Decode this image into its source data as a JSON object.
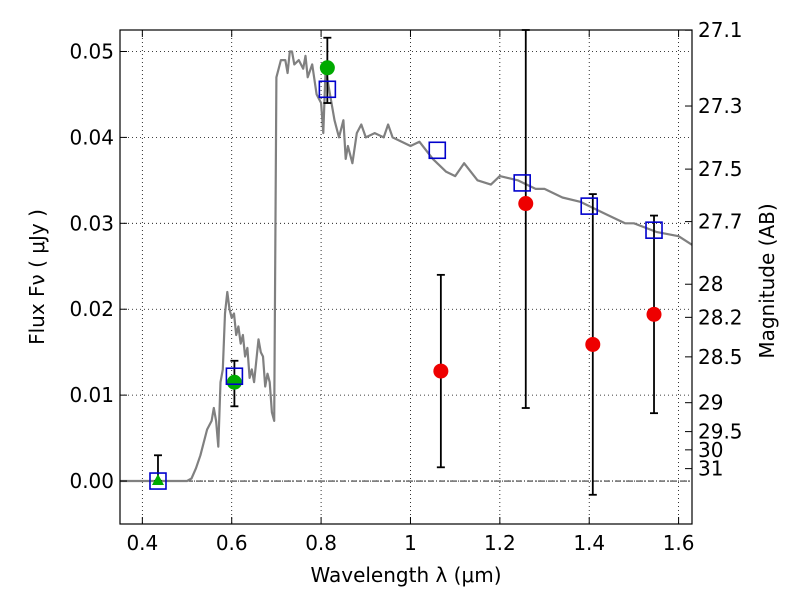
{
  "chart_data": {
    "type": "scatter",
    "title": "",
    "xlabel": "Wavelength  λ (μm)",
    "ylabel": "Flux  Fν  ( μJy )",
    "ylabel_right": "Magnitude (AB)",
    "xlim": [
      0.35,
      1.63
    ],
    "ylim": [
      -0.005,
      0.0525
    ],
    "grid": true,
    "x_ticks": [
      0.4,
      0.6,
      0.8,
      1.0,
      1.2,
      1.4,
      1.6
    ],
    "x_tick_labels": [
      "0.4",
      "0.6",
      "0.8",
      "1",
      "1.2",
      "1.4",
      "1.6"
    ],
    "y_ticks": [
      0.0,
      0.01,
      0.02,
      0.03,
      0.04,
      0.05
    ],
    "y_tick_labels": [
      "0.00",
      "0.01",
      "0.02",
      "0.03",
      "0.04",
      "0.05"
    ],
    "right_ticks": [
      {
        "label": "27.1",
        "mag": 27.1
      },
      {
        "label": "27.3",
        "mag": 27.3
      },
      {
        "label": "27.5",
        "mag": 27.5
      },
      {
        "label": "27.7",
        "mag": 27.7
      },
      {
        "label": "28",
        "mag": 28.0
      },
      {
        "label": "28.2",
        "mag": 28.2
      },
      {
        "label": "28.5",
        "mag": 28.5
      },
      {
        "label": "29",
        "mag": 29.0
      },
      {
        "label": "29.5",
        "mag": 29.5
      },
      {
        "label": "30",
        "mag": 30.0
      },
      {
        "label": "31",
        "mag": 31.0
      }
    ],
    "colors": {
      "sed_line": "#808080",
      "model_box": "#0000cc",
      "detection": "#00aa00",
      "nondetection": "#ee0000",
      "errorbar": "#000000"
    },
    "sed_model": {
      "x": [
        0.35,
        0.5,
        0.51,
        0.52,
        0.53,
        0.545,
        0.555,
        0.56,
        0.565,
        0.57,
        0.575,
        0.58,
        0.585,
        0.59,
        0.595,
        0.6,
        0.605,
        0.61,
        0.615,
        0.62,
        0.625,
        0.63,
        0.635,
        0.64,
        0.645,
        0.65,
        0.66,
        0.665,
        0.67,
        0.675,
        0.68,
        0.685,
        0.69,
        0.695,
        0.7,
        0.71,
        0.72,
        0.725,
        0.73,
        0.735,
        0.74,
        0.75,
        0.76,
        0.765,
        0.77,
        0.78,
        0.79,
        0.8,
        0.805,
        0.81,
        0.82,
        0.83,
        0.84,
        0.85,
        0.855,
        0.86,
        0.87,
        0.88,
        0.89,
        0.9,
        0.92,
        0.94,
        0.95,
        0.96,
        1.0,
        1.02,
        1.05,
        1.08,
        1.1,
        1.12,
        1.15,
        1.18,
        1.2,
        1.24,
        1.28,
        1.3,
        1.34,
        1.38,
        1.4,
        1.44,
        1.48,
        1.5,
        1.55,
        1.6,
        1.63
      ],
      "y": [
        0.0,
        0.0,
        0.0003,
        0.0015,
        0.003,
        0.006,
        0.007,
        0.0085,
        0.007,
        0.004,
        0.0115,
        0.013,
        0.0195,
        0.022,
        0.02,
        0.019,
        0.0195,
        0.017,
        0.018,
        0.016,
        0.017,
        0.0145,
        0.0155,
        0.012,
        0.013,
        0.0115,
        0.0165,
        0.015,
        0.0145,
        0.011,
        0.0125,
        0.0115,
        0.008,
        0.007,
        0.047,
        0.049,
        0.049,
        0.0475,
        0.05,
        0.05,
        0.0485,
        0.049,
        0.048,
        0.0495,
        0.047,
        0.0485,
        0.045,
        0.044,
        0.0405,
        0.048,
        0.045,
        0.042,
        0.04,
        0.042,
        0.0375,
        0.039,
        0.037,
        0.0405,
        0.0415,
        0.04,
        0.0405,
        0.04,
        0.0415,
        0.04,
        0.039,
        0.0395,
        0.0375,
        0.036,
        0.0355,
        0.037,
        0.035,
        0.0345,
        0.0355,
        0.035,
        0.034,
        0.034,
        0.033,
        0.0325,
        0.032,
        0.031,
        0.03,
        0.03,
        0.029,
        0.0285,
        0.0275
      ]
    },
    "model_fluxes": {
      "x": [
        0.435,
        0.606,
        0.814,
        1.06,
        1.25,
        1.4,
        1.545
      ],
      "y": [
        0.0,
        0.0122,
        0.0456,
        0.0385,
        0.0347,
        0.032,
        0.0292
      ]
    },
    "detections": {
      "x": [
        0.606,
        0.814
      ],
      "y": [
        0.0115,
        0.0481
      ],
      "err_low": [
        0.0028,
        0.0041
      ],
      "err_high": [
        0.0025,
        0.0035
      ]
    },
    "nondetections": {
      "x": [
        1.068,
        1.258,
        1.408,
        1.545
      ],
      "y": [
        0.0128,
        0.0323,
        0.0159,
        0.0194
      ],
      "err_low": [
        0.0112,
        0.0238,
        0.0175,
        0.0115
      ],
      "err_high": [
        0.0112,
        0.0202,
        0.0175,
        0.0115
      ]
    },
    "upper_limit": {
      "x": [
        0.435
      ],
      "y": [
        0.0
      ],
      "err_low": [
        0.0
      ],
      "err_high": [
        0.003
      ]
    }
  }
}
